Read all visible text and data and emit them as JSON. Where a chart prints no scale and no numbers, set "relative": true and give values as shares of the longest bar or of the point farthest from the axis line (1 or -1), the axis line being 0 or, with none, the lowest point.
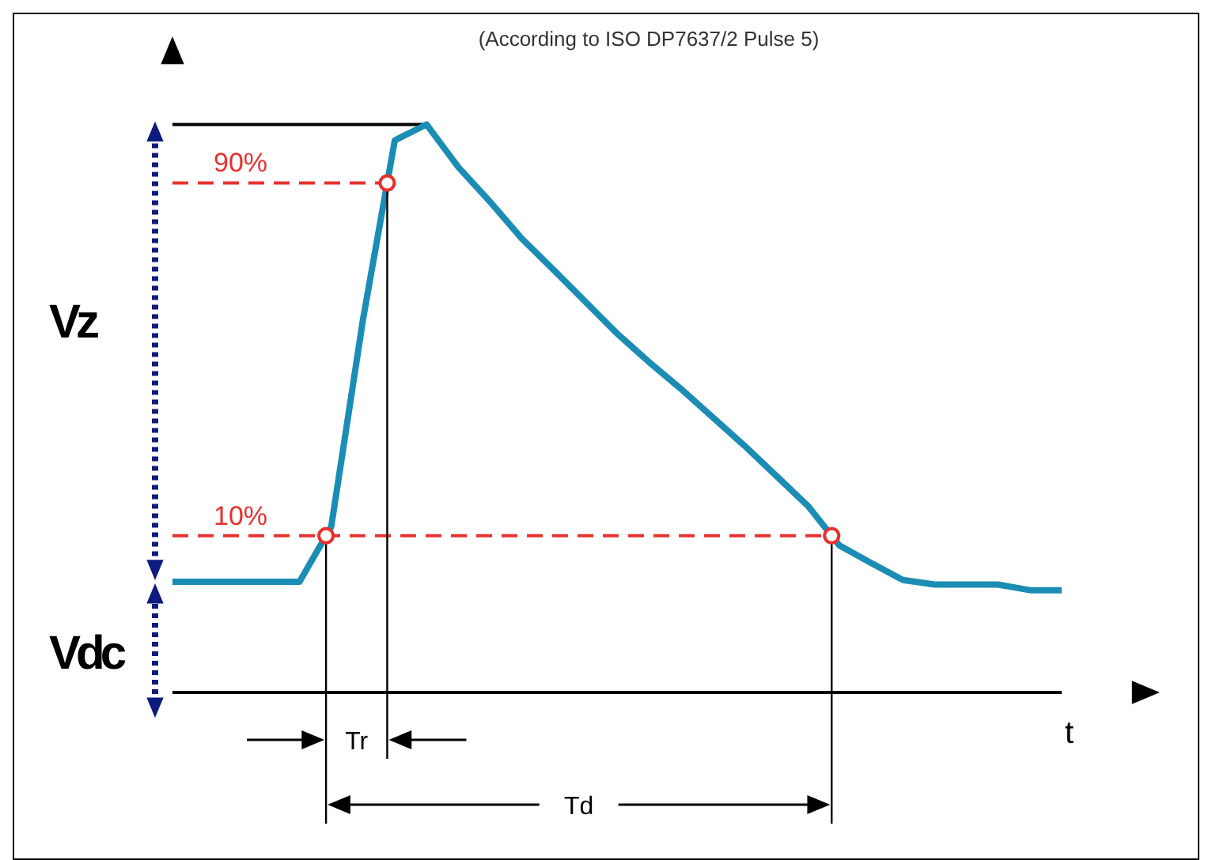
{
  "chart_data": {
    "type": "line",
    "title": "(According to ISO DP7637/2 Pulse 5)",
    "xlabel": "t",
    "relative": true,
    "categories": [
      null,
      null,
      null,
      null,
      null,
      null,
      null,
      null,
      null,
      null,
      null,
      null,
      null,
      null,
      null,
      null,
      null,
      null,
      null,
      null,
      null,
      null,
      null,
      null,
      null,
      null,
      null,
      null,
      null
    ],
    "series": [
      {
        "color": "#1b8db5",
        "values": [
          0.195,
          0.195,
          0.195,
          0.195,
          0.195,
          0.292,
          0.657,
          0.972,
          1,
          0.925,
          0.864,
          0.799,
          0.744,
          0.688,
          0.632,
          0.582,
          0.535,
          0.485,
          0.435,
          0.382,
          0.329,
          0.259,
          0.228,
          0.198,
          0.19,
          0.19,
          0.19,
          0.18,
          0.18
        ]
      }
    ],
    "ref_lines": [
      {
        "axis": "y",
        "value": 1,
        "color": "#000000",
        "line_style": "solid"
      },
      {
        "axis": "y",
        "value": 0.897,
        "color": "#e8312f",
        "line_style": "dashed"
      },
      {
        "axis": "y",
        "value": 0.276,
        "color": "#e8312f",
        "line_style": "dashed"
      }
    ],
    "annotations": [
      "90%",
      "10%",
      "Tr",
      "Td",
      "Vz",
      "Vdc"
    ],
    "marker": "none",
    "line_style": "solid"
  }
}
